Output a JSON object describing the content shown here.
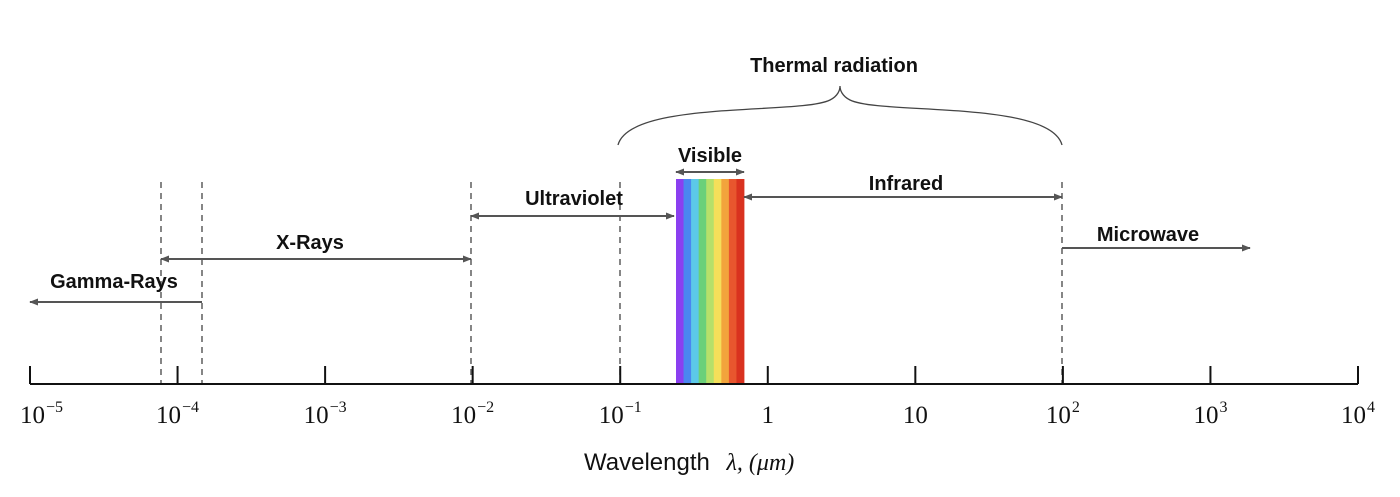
{
  "axis": {
    "title": "Wavelength",
    "symbol": "λ, (μm)",
    "ticks": [
      {
        "value": -5,
        "base": "10",
        "exp": "−5"
      },
      {
        "value": -4,
        "base": "10",
        "exp": "−4"
      },
      {
        "value": -3,
        "base": "10",
        "exp": "−3"
      },
      {
        "value": -2,
        "base": "10",
        "exp": "−2"
      },
      {
        "value": -1,
        "base": "10",
        "exp": "−1"
      },
      {
        "value": 0,
        "base": "1",
        "exp": ""
      },
      {
        "value": 1,
        "base": "10",
        "exp": ""
      },
      {
        "value": 2,
        "base": "10",
        "exp": "2"
      },
      {
        "value": 3,
        "base": "10",
        "exp": "3"
      },
      {
        "value": 4,
        "base": "10",
        "exp": "4"
      }
    ]
  },
  "bands": {
    "gamma": "Gamma-Rays",
    "xrays": "X-Rays",
    "ultraviolet": "Ultraviolet",
    "visible": "Visible",
    "infrared": "Infrared",
    "microwave": "Microwave",
    "thermal": "Thermal radiation"
  },
  "spectrum_colors": [
    "#8a3ff0",
    "#4a86f0",
    "#5cc9e8",
    "#6ad07a",
    "#b6e06a",
    "#f5df5a",
    "#f2a43c",
    "#e8562e",
    "#d9321f"
  ]
}
